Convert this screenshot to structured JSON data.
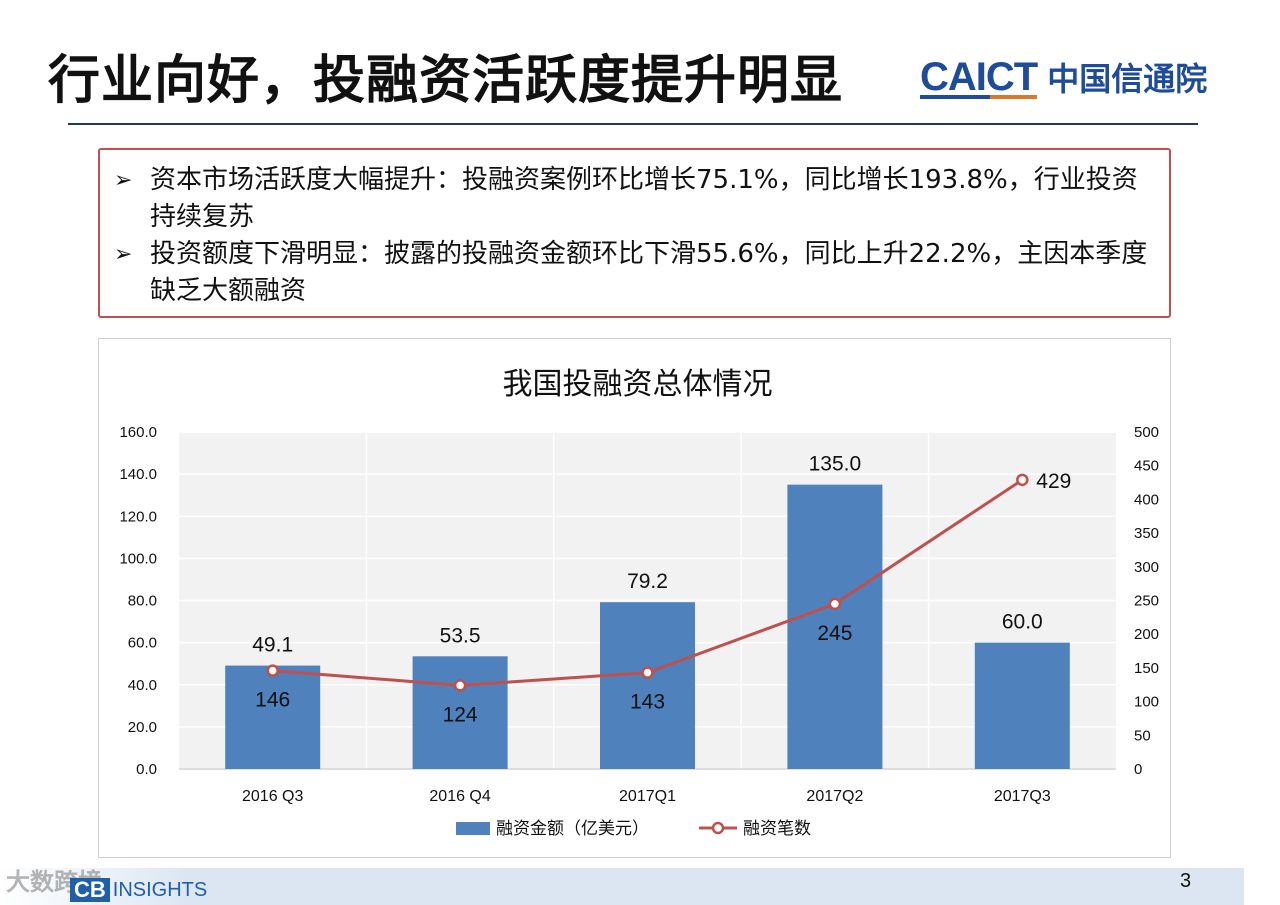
{
  "slide": {
    "title": "行业向好，投融资活跃度提升明显",
    "logo_en": "CAICT",
    "logo_cn": "中国信通院",
    "page_number": "3",
    "footer_logo_mark": "CB",
    "footer_logo_text": "INSIGHTS",
    "watermark": "大数跨境"
  },
  "summary": {
    "bullets": [
      {
        "arrow": "➢",
        "text": "资本市场活跃度大幅提升：投融资案例环比增长75.1%，同比增长193.8%，行业投资持续复苏"
      },
      {
        "arrow": "➢",
        "text": "投资额度下滑明显：披露的投融资金额环比下滑55.6%，同比上升22.2%，主因本季度缺乏大额融资"
      }
    ]
  },
  "chart_data": {
    "type": "bar",
    "title": "我国投融资总体情况",
    "categories": [
      "2016 Q3",
      "2016 Q4",
      "2017Q1",
      "2017Q2",
      "2017Q3"
    ],
    "series": [
      {
        "name": "融资金额（亿美元）",
        "type": "bar",
        "axis": "left",
        "values": [
          49.1,
          53.5,
          79.2,
          135.0,
          60.0
        ],
        "labels": [
          "49.1",
          "53.5",
          "79.2",
          "135.0",
          "60.0"
        ],
        "color": "#4f81bd"
      },
      {
        "name": "融资笔数",
        "type": "line",
        "axis": "right",
        "values": [
          146,
          124,
          143,
          245,
          429
        ],
        "labels": [
          "146",
          "124",
          "143",
          "245",
          "429"
        ],
        "color": "#c0504d"
      }
    ],
    "y_left": {
      "min": 0,
      "max": 160,
      "step": 20,
      "ticks": [
        "0.0",
        "20.0",
        "40.0",
        "60.0",
        "80.0",
        "100.0",
        "120.0",
        "140.0",
        "160.0"
      ]
    },
    "y_right": {
      "min": 0,
      "max": 500,
      "step": 50,
      "ticks": [
        "0",
        "50",
        "100",
        "150",
        "200",
        "250",
        "300",
        "350",
        "400",
        "450",
        "500"
      ]
    },
    "grid": true,
    "legend": "bottom"
  }
}
